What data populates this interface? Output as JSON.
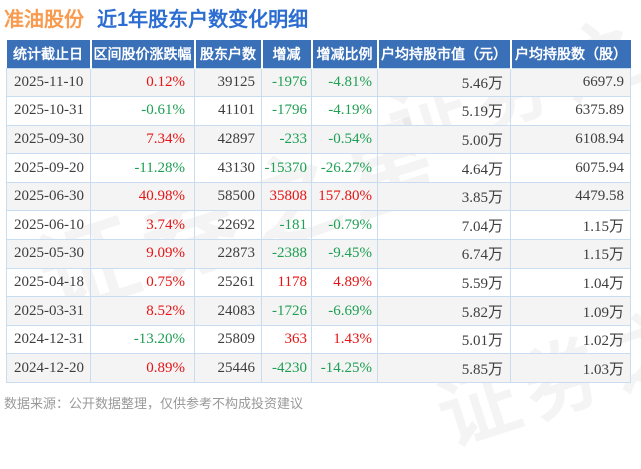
{
  "page": {
    "title_stock": "准油股份",
    "title_text": "近1年股东户数变化明细",
    "footer_note": "数据来源：公开数据整理，仅供参考不构成投资建议",
    "watermark_text": "证券之星"
  },
  "chart_data": {
    "type": "table",
    "title": "准油股份 近1年股东户数变化明细",
    "columns": [
      "统计截止日",
      "区间股价涨跌幅",
      "股东户数",
      "增减",
      "增减比例",
      "户均持股市值（元）",
      "户均持股数（股）"
    ],
    "rows": [
      {
        "date": "2025-11-10",
        "range_change_pct": "0.12%",
        "range_dir": "up",
        "holders": "39125",
        "delta": "-1976",
        "delta_dir": "down",
        "delta_pct": "-4.81%",
        "delta_pct_dir": "down",
        "avg_market_value": "5.46万",
        "avg_shares": "6697.9"
      },
      {
        "date": "2025-10-31",
        "range_change_pct": "-0.61%",
        "range_dir": "down",
        "holders": "41101",
        "delta": "-1796",
        "delta_dir": "down",
        "delta_pct": "-4.19%",
        "delta_pct_dir": "down",
        "avg_market_value": "5.19万",
        "avg_shares": "6375.89"
      },
      {
        "date": "2025-09-30",
        "range_change_pct": "7.34%",
        "range_dir": "up",
        "holders": "42897",
        "delta": "-233",
        "delta_dir": "down",
        "delta_pct": "-0.54%",
        "delta_pct_dir": "down",
        "avg_market_value": "5.00万",
        "avg_shares": "6108.94"
      },
      {
        "date": "2025-09-20",
        "range_change_pct": "-11.28%",
        "range_dir": "down",
        "holders": "43130",
        "delta": "-15370",
        "delta_dir": "down",
        "delta_pct": "-26.27%",
        "delta_pct_dir": "down",
        "avg_market_value": "4.64万",
        "avg_shares": "6075.94"
      },
      {
        "date": "2025-06-30",
        "range_change_pct": "40.98%",
        "range_dir": "up",
        "holders": "58500",
        "delta": "35808",
        "delta_dir": "up",
        "delta_pct": "157.80%",
        "delta_pct_dir": "up",
        "avg_market_value": "3.85万",
        "avg_shares": "4479.58"
      },
      {
        "date": "2025-06-10",
        "range_change_pct": "3.74%",
        "range_dir": "up",
        "holders": "22692",
        "delta": "-181",
        "delta_dir": "down",
        "delta_pct": "-0.79%",
        "delta_pct_dir": "down",
        "avg_market_value": "7.04万",
        "avg_shares": "1.15万"
      },
      {
        "date": "2025-05-30",
        "range_change_pct": "9.09%",
        "range_dir": "up",
        "holders": "22873",
        "delta": "-2388",
        "delta_dir": "down",
        "delta_pct": "-9.45%",
        "delta_pct_dir": "down",
        "avg_market_value": "6.74万",
        "avg_shares": "1.15万"
      },
      {
        "date": "2025-04-18",
        "range_change_pct": "0.75%",
        "range_dir": "up",
        "holders": "25261",
        "delta": "1178",
        "delta_dir": "up",
        "delta_pct": "4.89%",
        "delta_pct_dir": "up",
        "avg_market_value": "5.59万",
        "avg_shares": "1.04万"
      },
      {
        "date": "2025-03-31",
        "range_change_pct": "8.52%",
        "range_dir": "up",
        "holders": "24083",
        "delta": "-1726",
        "delta_dir": "down",
        "delta_pct": "-6.69%",
        "delta_pct_dir": "down",
        "avg_market_value": "5.82万",
        "avg_shares": "1.09万"
      },
      {
        "date": "2024-12-31",
        "range_change_pct": "-13.20%",
        "range_dir": "down",
        "holders": "25809",
        "delta": "363",
        "delta_dir": "up",
        "delta_pct": "1.43%",
        "delta_pct_dir": "up",
        "avg_market_value": "5.01万",
        "avg_shares": "1.02万"
      },
      {
        "date": "2024-12-20",
        "range_change_pct": "0.89%",
        "range_dir": "up",
        "holders": "25446",
        "delta": "-4230",
        "delta_dir": "down",
        "delta_pct": "-14.25%",
        "delta_pct_dir": "down",
        "avg_market_value": "5.85万",
        "avg_shares": "1.03万"
      }
    ]
  },
  "colors": {
    "header_bg": "#3a70b8",
    "up": "#e61414",
    "down": "#1e9f53",
    "title_stock": "#f99b4e",
    "title_sub": "#2c6dd2",
    "border": "#c9ddf0",
    "stripe": "#f4f4f5",
    "text": "#3e3e3e",
    "footer": "#999999"
  }
}
